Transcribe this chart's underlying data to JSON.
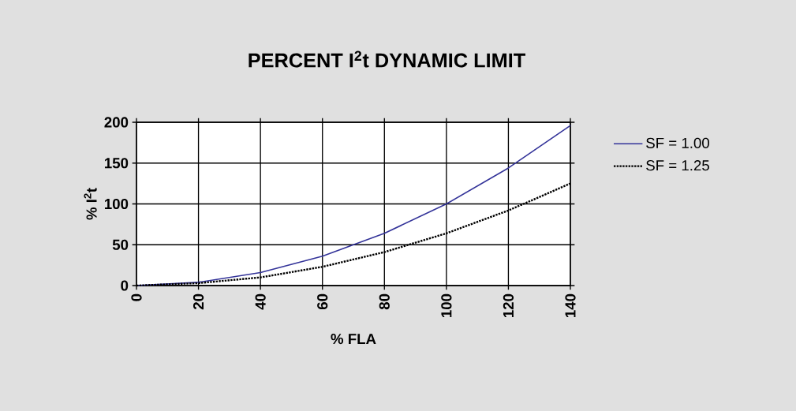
{
  "chart_data": {
    "type": "line",
    "title": "PERCENT I$^{2}$t DYNAMIC LIMIT",
    "xlabel": "% FLA",
    "ylabel": "% I$^{2}$t",
    "x": [
      0,
      20,
      40,
      60,
      80,
      100,
      120,
      140
    ],
    "series": [
      {
        "name": "SF = 1.00",
        "color": "#333399",
        "line_style": "solid",
        "values": [
          0,
          4,
          16,
          36,
          64,
          100,
          144,
          196
        ]
      },
      {
        "name": "SF = 1.25",
        "color": "#000000",
        "line_style": "dotted",
        "values": [
          0,
          3,
          10,
          23,
          41,
          64,
          92,
          125
        ]
      }
    ],
    "xlim": [
      0,
      140
    ],
    "xticks": [
      0,
      20,
      40,
      60,
      80,
      100,
      120,
      140
    ],
    "ylim": [
      0,
      200
    ],
    "yticks": [
      0,
      50,
      100,
      150,
      200
    ],
    "grid": true,
    "legend": "right",
    "marker": "none"
  }
}
